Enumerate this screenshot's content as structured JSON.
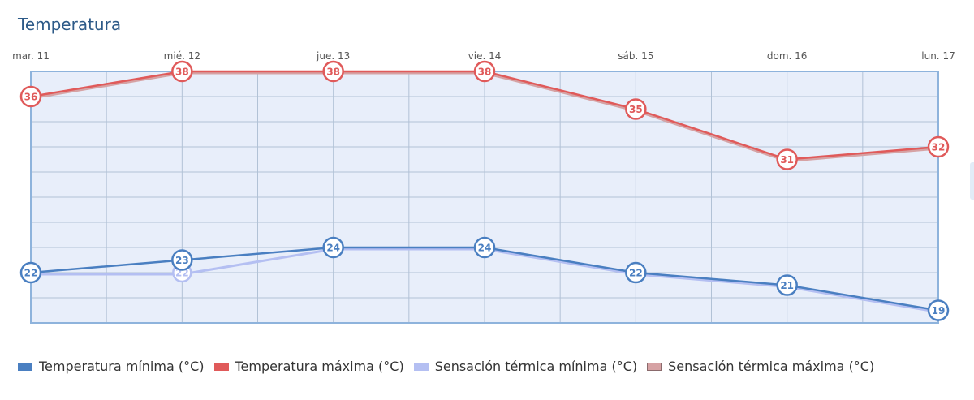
{
  "page": {
    "title": "Temperatura"
  },
  "chart_data": {
    "type": "line",
    "title": "Temperatura",
    "categories": [
      "mar. 11",
      "mié. 12",
      "jue. 13",
      "vie. 14",
      "sáb. 15",
      "dom. 16",
      "lun. 17"
    ],
    "ylim": [
      18,
      38
    ],
    "grid": true,
    "legend_position": "bottom-left",
    "series": [
      {
        "key": "sensacion_min",
        "name": "Sensación térmica mínima (°C)",
        "color": "#b4bff2",
        "values": [
          22,
          22,
          24,
          24,
          22,
          21,
          19
        ],
        "labeled": false
      },
      {
        "key": "sensacion_max",
        "name": "Sensación térmica máxima (°C)",
        "color": "#d6a2a4",
        "values": [
          36,
          38,
          38,
          38,
          35,
          31,
          32
        ],
        "labeled": false
      },
      {
        "key": "temp_min",
        "name": "Temperatura mínima (°C)",
        "color": "#4a7fc1",
        "values": [
          22,
          23,
          24,
          24,
          22,
          21,
          19
        ],
        "labeled": true
      },
      {
        "key": "temp_max",
        "name": "Temperatura máxima (°C)",
        "color": "#e05a5a",
        "values": [
          36,
          38,
          38,
          38,
          35,
          31,
          32
        ],
        "labeled": true
      }
    ],
    "extra_markers": [
      {
        "series": "sensacion_min",
        "index": 1,
        "value": 22
      }
    ],
    "legend_order": [
      "temp_min",
      "temp_max",
      "sensacion_min",
      "sensacion_max"
    ]
  },
  "colors": {
    "plot_background": "#e8eefa",
    "plot_border": "#8eb3dc",
    "grid": "#b2c2d6",
    "title": "#2d5a88"
  }
}
